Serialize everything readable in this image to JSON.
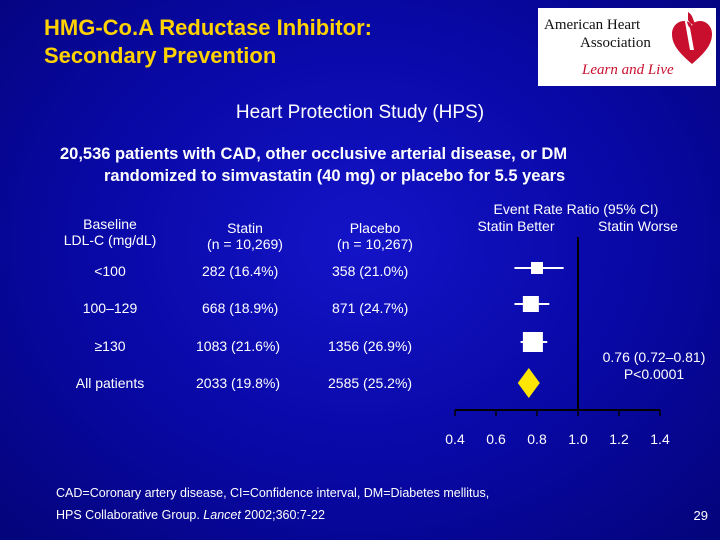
{
  "slide": {
    "title_line1": "HMG-Co.A Reductase Inhibitor:",
    "title_line2": "Secondary Prevention",
    "subtitle": "Heart Protection Study (HPS)",
    "description_line1": "20,536 patients with CAD, other occlusive arterial disease, or DM",
    "description_line2": "randomized to simvastatin (40 mg) or placebo for 5.5 years",
    "page_number": "29"
  },
  "logo": {
    "line1": "American Heart",
    "line2": "Association",
    "tagline": "Learn and Live"
  },
  "table": {
    "headers": {
      "baseline_line1": "Baseline",
      "baseline_line2": "LDL-C (mg/dL)",
      "statin_line1": "Statin",
      "statin_line2": "(n = 10,269)",
      "placebo_line1": "Placebo",
      "placebo_line2": "(n = 10,267)"
    },
    "rows": [
      {
        "baseline": "<100",
        "statin": "282 (16.4%)",
        "placebo": "358 (21.0%)"
      },
      {
        "baseline": "100–129",
        "statin": "668 (18.9%)",
        "placebo": "871 (24.7%)"
      },
      {
        "baseline": "≥130",
        "statin": "1083 (21.6%)",
        "placebo": "1356 (26.9%)"
      },
      {
        "baseline": "All patients",
        "statin": "2033 (19.8%)",
        "placebo": "2585 (25.2%)"
      }
    ]
  },
  "chart_data": {
    "type": "forest",
    "title": "Event Rate Ratio (95% CI)",
    "left_label": "Statin Better",
    "right_label": "Statin Worse",
    "xlim": [
      0.4,
      1.4
    ],
    "reference_line": 1.0,
    "ticks": [
      "0.4",
      "0.6",
      "0.8",
      "1.0",
      "1.2",
      "1.4"
    ],
    "tick_values": [
      0.4,
      0.6,
      0.8,
      1.0,
      1.2,
      1.4
    ],
    "points": [
      {
        "label": "<100",
        "ratio": 0.8,
        "ci": [
          0.69,
          0.93
        ],
        "marker": "square",
        "size": 1
      },
      {
        "label": "100–129",
        "ratio": 0.77,
        "ci": [
          0.69,
          0.86
        ],
        "marker": "square",
        "size": 2
      },
      {
        "label": "≥130",
        "ratio": 0.78,
        "ci": [
          0.72,
          0.85
        ],
        "marker": "square",
        "size": 3
      },
      {
        "label": "All patients",
        "ratio": 0.76,
        "ci": [
          0.72,
          0.81
        ],
        "marker": "diamond",
        "size": 3
      }
    ],
    "overall_label": "0.76 (0.72–0.81)",
    "p_value": "P<0.0001"
  },
  "footnotes": {
    "line1": "CAD=Coronary artery disease, CI=Confidence interval, DM=Diabetes mellitus,",
    "citation_pre": "HPS Collaborative Group. ",
    "citation_journal": "Lancet",
    "citation_post": " 2002;360:7-22"
  },
  "colors": {
    "title": "#ffd200",
    "background": "#0808a4",
    "markers": "#ffffff",
    "diamond": "#ffe600"
  }
}
